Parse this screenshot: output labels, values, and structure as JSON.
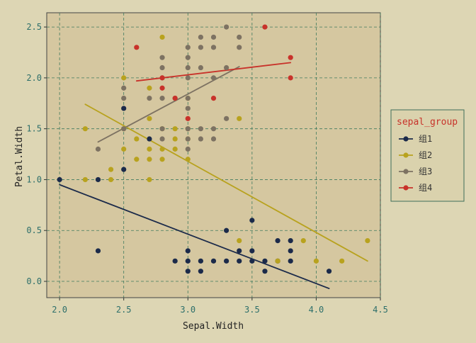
{
  "chart_data": {
    "type": "scatter",
    "xlabel": "Sepal.Width",
    "ylabel": "Petal.Width",
    "xlim": [
      1.9,
      4.5
    ],
    "ylim": [
      -0.16,
      2.64
    ],
    "xticks": [
      2.0,
      2.5,
      3.0,
      3.5,
      4.0,
      4.5
    ],
    "xtick_labels": [
      "2.0",
      "2.5",
      "3.0",
      "3.5",
      "4.0",
      "4.5"
    ],
    "yticks": [
      0.0,
      0.5,
      1.0,
      1.5,
      2.0,
      2.5
    ],
    "ytick_labels": [
      "0.0",
      "0.5",
      "1.0",
      "1.5",
      "2.0",
      "2.5"
    ],
    "grid": true,
    "legend_title": "sepal_group",
    "legend_position": "right",
    "series": [
      {
        "name": "组1",
        "color": "#1b2a4a",
        "points": [
          [
            2.0,
            1.0
          ],
          [
            2.3,
            1.0
          ],
          [
            2.3,
            0.3
          ],
          [
            2.5,
            1.7
          ],
          [
            2.5,
            1.1
          ],
          [
            2.7,
            1.4
          ],
          [
            2.9,
            0.2
          ],
          [
            3.0,
            0.1
          ],
          [
            3.0,
            0.2
          ],
          [
            3.0,
            0.3
          ],
          [
            3.1,
            0.1
          ],
          [
            3.1,
            0.2
          ],
          [
            3.2,
            0.2
          ],
          [
            3.3,
            0.2
          ],
          [
            3.3,
            0.5
          ],
          [
            3.4,
            0.2
          ],
          [
            3.4,
            0.3
          ],
          [
            3.5,
            0.2
          ],
          [
            3.5,
            0.3
          ],
          [
            3.5,
            0.6
          ],
          [
            3.6,
            0.1
          ],
          [
            3.6,
            0.2
          ],
          [
            3.7,
            0.2
          ],
          [
            3.7,
            0.4
          ],
          [
            3.8,
            0.2
          ],
          [
            3.8,
            0.3
          ],
          [
            3.8,
            0.4
          ],
          [
            4.1,
            0.1
          ]
        ],
        "fit": [
          [
            2.0,
            0.95
          ],
          [
            4.1,
            -0.07
          ]
        ]
      },
      {
        "name": "组2",
        "color": "#b8a21e",
        "points": [
          [
            2.2,
            1.0
          ],
          [
            2.2,
            1.5
          ],
          [
            2.4,
            1.0
          ],
          [
            2.4,
            1.1
          ],
          [
            2.5,
            1.3
          ],
          [
            2.5,
            1.5
          ],
          [
            2.5,
            2.0
          ],
          [
            2.6,
            1.2
          ],
          [
            2.6,
            1.4
          ],
          [
            2.7,
            1.0
          ],
          [
            2.7,
            1.2
          ],
          [
            2.7,
            1.3
          ],
          [
            2.7,
            1.6
          ],
          [
            2.7,
            1.9
          ],
          [
            2.8,
            1.2
          ],
          [
            2.8,
            1.3
          ],
          [
            2.8,
            1.5
          ],
          [
            2.8,
            2.4
          ],
          [
            2.9,
            1.3
          ],
          [
            2.9,
            1.4
          ],
          [
            2.9,
            1.5
          ],
          [
            3.0,
            1.2
          ],
          [
            3.0,
            1.4
          ],
          [
            3.0,
            1.5
          ],
          [
            3.0,
            1.8
          ],
          [
            3.4,
            0.4
          ],
          [
            3.4,
            1.6
          ],
          [
            3.7,
            0.2
          ],
          [
            3.9,
            0.4
          ],
          [
            4.0,
            0.2
          ],
          [
            4.2,
            0.2
          ],
          [
            4.4,
            0.4
          ]
        ],
        "fit": [
          [
            2.2,
            1.74
          ],
          [
            4.4,
            0.2
          ]
        ]
      },
      {
        "name": "组3",
        "color": "#7d7262",
        "points": [
          [
            2.3,
            1.3
          ],
          [
            2.5,
            1.5
          ],
          [
            2.5,
            1.8
          ],
          [
            2.5,
            1.9
          ],
          [
            2.7,
            1.8
          ],
          [
            2.8,
            1.4
          ],
          [
            2.8,
            1.5
          ],
          [
            2.8,
            1.8
          ],
          [
            2.8,
            2.0
          ],
          [
            2.8,
            2.1
          ],
          [
            2.8,
            2.2
          ],
          [
            2.9,
            1.8
          ],
          [
            3.0,
            1.3
          ],
          [
            3.0,
            1.4
          ],
          [
            3.0,
            1.5
          ],
          [
            3.0,
            1.7
          ],
          [
            3.0,
            1.8
          ],
          [
            3.0,
            2.0
          ],
          [
            3.0,
            2.1
          ],
          [
            3.0,
            2.2
          ],
          [
            3.0,
            2.3
          ],
          [
            3.1,
            1.4
          ],
          [
            3.1,
            1.5
          ],
          [
            3.1,
            2.1
          ],
          [
            3.1,
            2.3
          ],
          [
            3.1,
            2.4
          ],
          [
            3.2,
            1.4
          ],
          [
            3.2,
            1.5
          ],
          [
            3.2,
            2.0
          ],
          [
            3.2,
            2.3
          ],
          [
            3.2,
            2.4
          ],
          [
            3.3,
            1.6
          ],
          [
            3.3,
            2.1
          ],
          [
            3.3,
            2.5
          ],
          [
            3.4,
            2.3
          ],
          [
            3.4,
            2.4
          ]
        ],
        "fit": [
          [
            2.3,
            1.37
          ],
          [
            3.4,
            2.11
          ]
        ]
      },
      {
        "name": "组4",
        "color": "#c8322a",
        "points": [
          [
            2.6,
            2.3
          ],
          [
            2.8,
            1.9
          ],
          [
            2.8,
            2.0
          ],
          [
            2.9,
            1.8
          ],
          [
            3.0,
            1.6
          ],
          [
            3.2,
            1.8
          ],
          [
            3.6,
            2.5
          ],
          [
            3.8,
            2.0
          ],
          [
            3.8,
            2.2
          ]
        ],
        "fit": [
          [
            2.6,
            1.97
          ],
          [
            3.8,
            2.15
          ]
        ]
      }
    ]
  }
}
